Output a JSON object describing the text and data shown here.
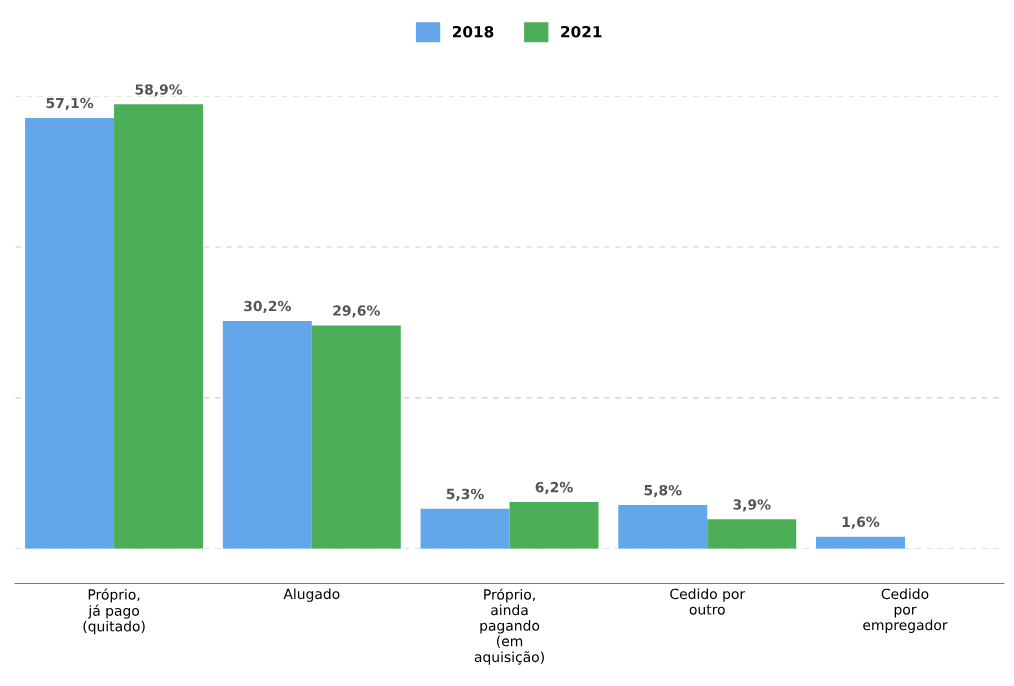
{
  "chart_data": {
    "type": "bar",
    "categories": [
      "Próprio,\njá pago\n(quitado)",
      "Alugado",
      "Próprio,\nainda\npagando\n(em\naquisição)",
      "Cedido por\noutro",
      "Cedido\npor\nempregador"
    ],
    "series": [
      {
        "name": "2018",
        "color": "#64a6ea",
        "values": [
          57.1,
          30.2,
          5.3,
          5.8,
          1.6
        ],
        "value_labels": [
          "57,1%",
          "30,2%",
          "5,3%",
          "5,8%",
          "1,6%"
        ]
      },
      {
        "name": "2021",
        "color": "#4caf57",
        "values": [
          58.9,
          29.6,
          6.2,
          3.9,
          null
        ],
        "value_labels": [
          "58,9%",
          "29,6%",
          "6,2%",
          "3,9%",
          null
        ]
      }
    ],
    "ylim": [
      0,
      60
    ],
    "yticks": [
      {
        "value": 0,
        "label": null
      },
      {
        "value": 20,
        "label": null
      },
      {
        "value": 40,
        "label": null
      },
      {
        "value": 60,
        "label": null
      }
    ],
    "grid": "y",
    "legend": "top",
    "tick_labels": "x"
  }
}
